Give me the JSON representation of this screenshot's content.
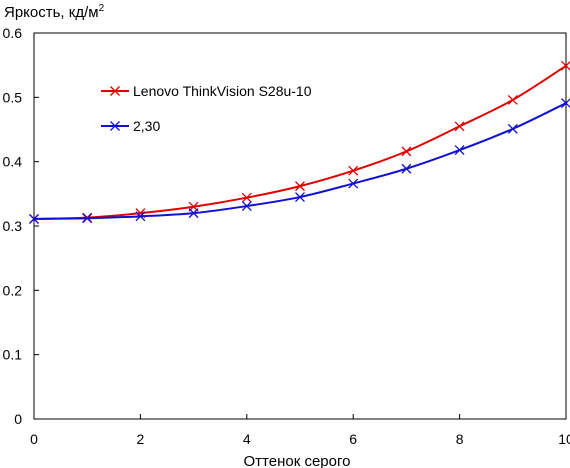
{
  "chart_data": {
    "type": "line",
    "title": "",
    "ylabel": "Яркость, кд/м",
    "ylabel_superscript": "2",
    "xlabel": "Оттенок серого",
    "xlim": [
      0,
      10
    ],
    "ylim": [
      0,
      0.6
    ],
    "x_ticks": [
      "0",
      "2",
      "4",
      "6",
      "8",
      "10"
    ],
    "y_ticks": [
      "0",
      "0.1",
      "0.2",
      "0.3",
      "0.4",
      "0.5",
      "0.6"
    ],
    "x_tick_values": [
      0,
      2,
      4,
      6,
      8,
      10
    ],
    "y_tick_values": [
      0,
      0.1,
      0.2,
      0.3,
      0.4,
      0.5,
      0.6
    ],
    "grid": false,
    "legend_position": "top-left",
    "x": [
      0,
      1,
      2,
      3,
      4,
      5,
      6,
      7,
      8,
      9,
      10
    ],
    "series": [
      {
        "name": "Lenovo ThinkVision S28u-10",
        "color": "#e00000",
        "marker": "x",
        "values": [
          0.311,
          0.313,
          0.32,
          0.33,
          0.344,
          0.362,
          0.386,
          0.416,
          0.455,
          0.496,
          0.549
        ]
      },
      {
        "name": "2,30",
        "color": "#1010d0",
        "marker": "x",
        "values": [
          0.311,
          0.312,
          0.315,
          0.32,
          0.331,
          0.345,
          0.366,
          0.389,
          0.418,
          0.451,
          0.491
        ]
      }
    ]
  }
}
